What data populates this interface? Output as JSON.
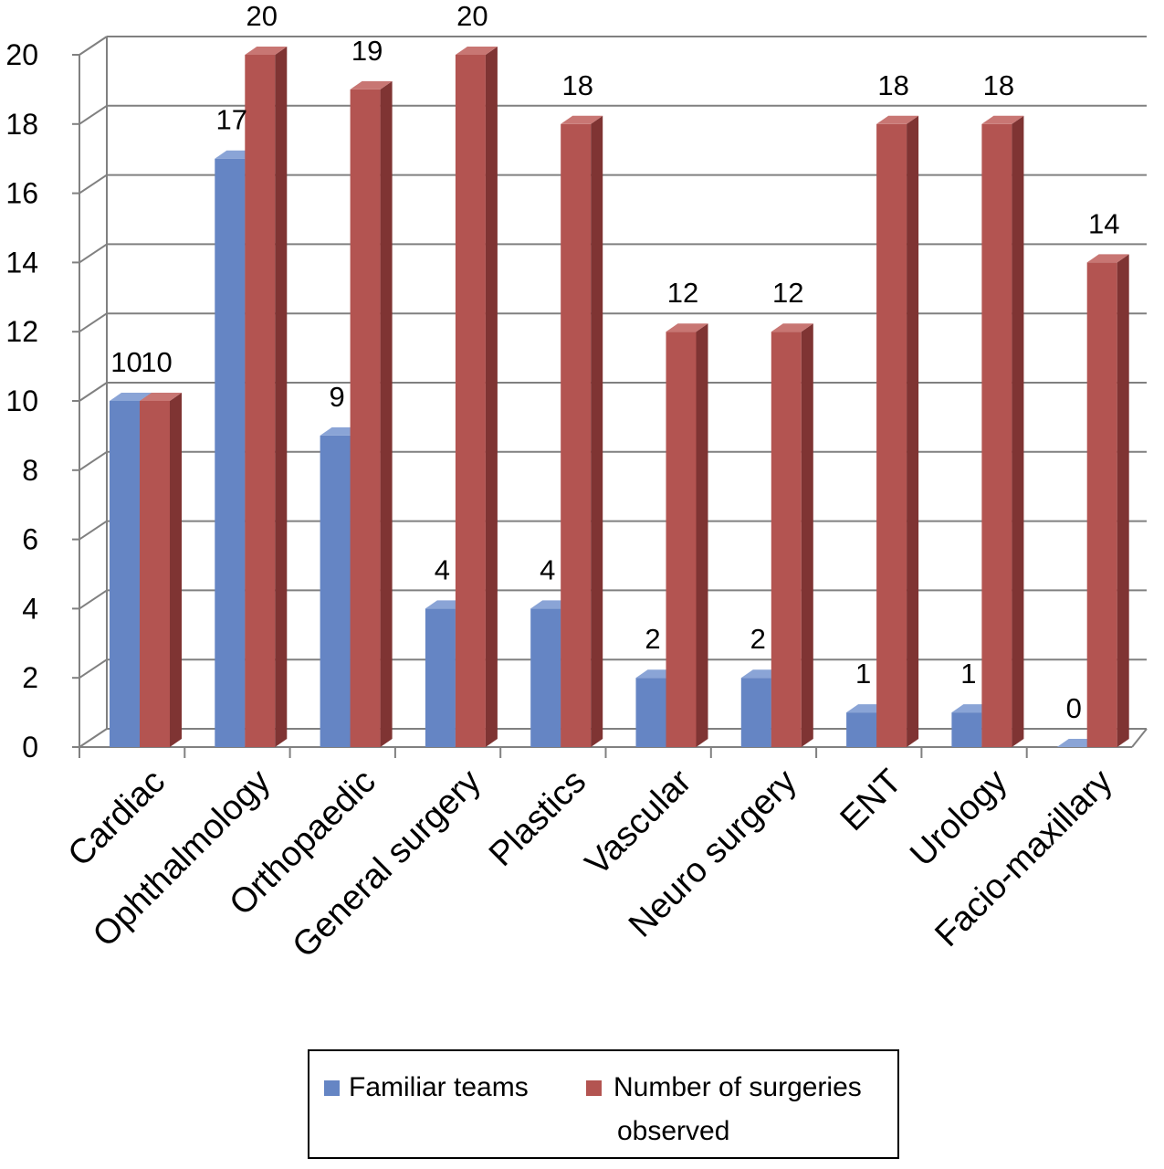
{
  "chart_data": {
    "type": "bar",
    "title": "",
    "xlabel": "",
    "ylabel": "",
    "ylim": [
      0,
      20
    ],
    "ytick_step": 2,
    "grid": true,
    "legend_position": "bottom",
    "categories": [
      "Cardiac",
      "Ophthalmology",
      "Orthopaedic",
      "General surgery",
      "Plastics",
      "Vascular",
      "Neuro surgery",
      "ENT",
      "Urology",
      "Facio-maxillary"
    ],
    "series": [
      {
        "name": "Familiar teams",
        "values": [
          10,
          17,
          9,
          4,
          4,
          2,
          2,
          1,
          1,
          0
        ],
        "color": "#6585C4",
        "side": "#4A6AA6",
        "top": "#8AA4D6"
      },
      {
        "name": "Number of surgeries observed",
        "values": [
          10,
          20,
          19,
          20,
          18,
          12,
          12,
          18,
          18,
          14
        ],
        "color": "#B35451",
        "side": "#7F3433",
        "top": "#C87673"
      }
    ]
  }
}
